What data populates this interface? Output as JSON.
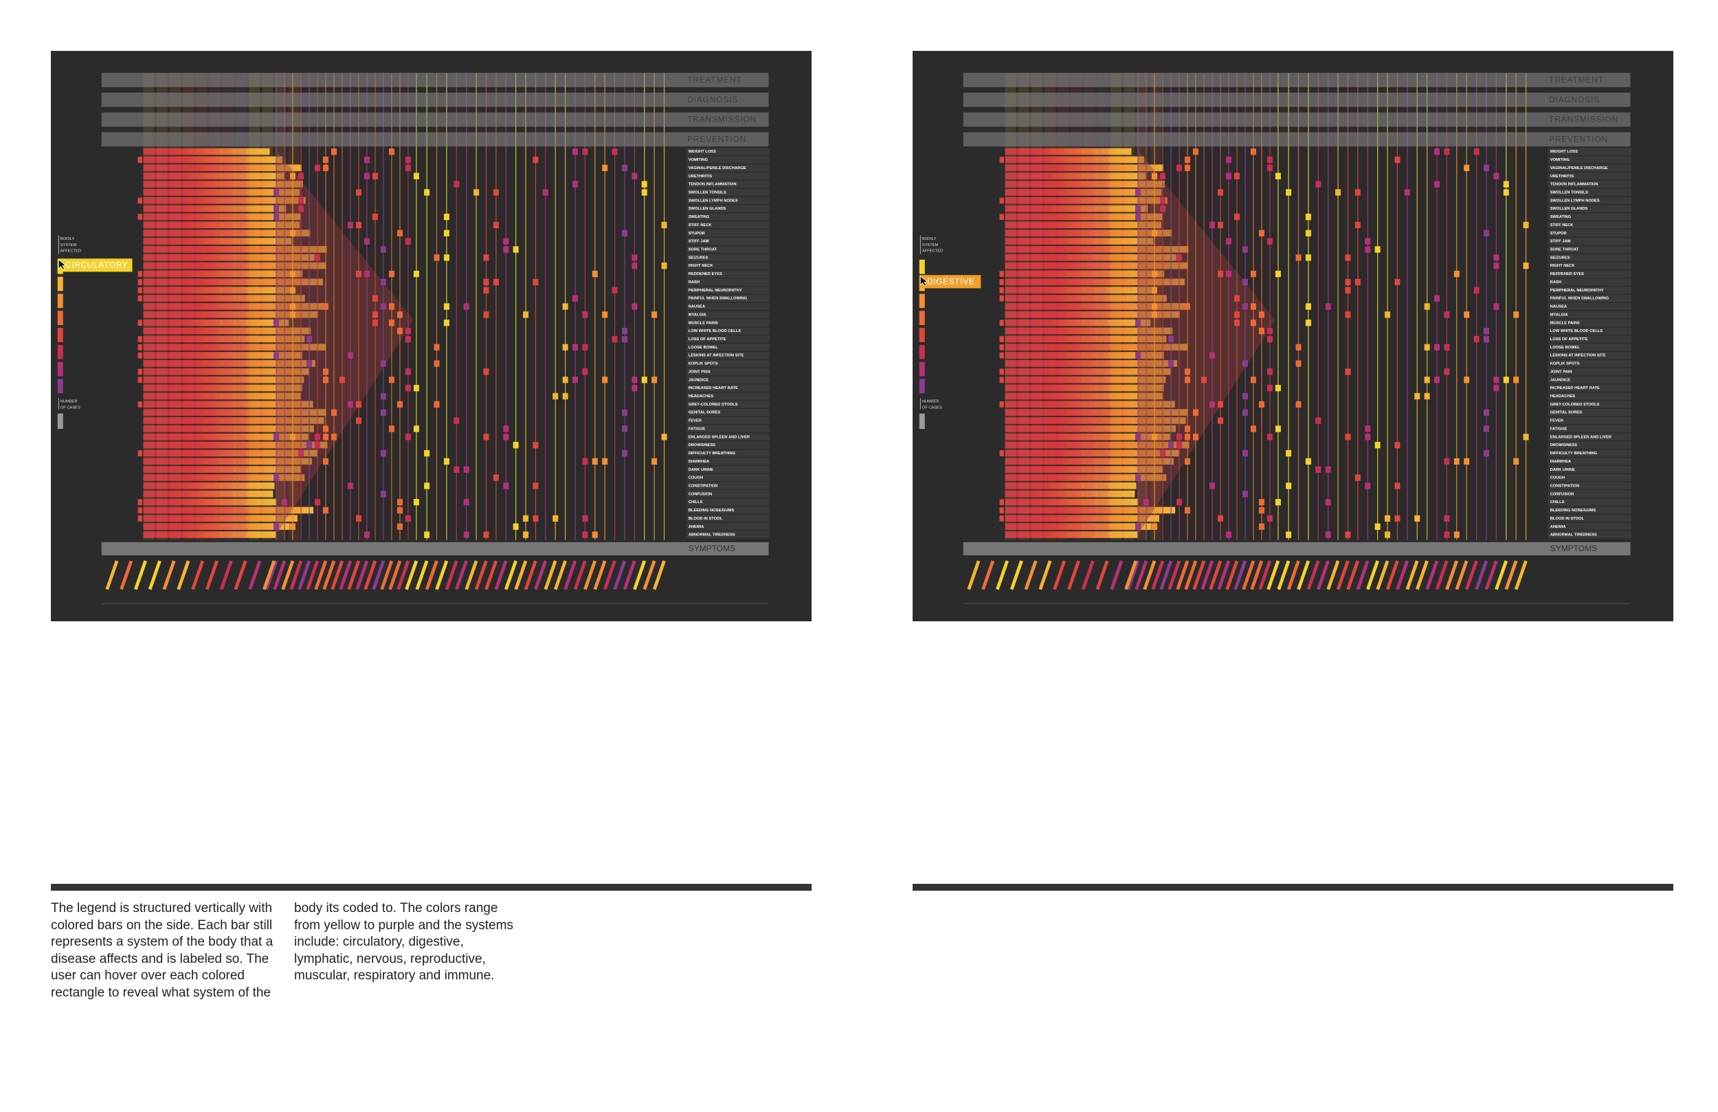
{
  "header_rows": [
    "TREATMENT",
    "DIAGNOSIS",
    "TRANSMISSION",
    "PREVENTION"
  ],
  "symptoms_header": "SYMPTOMS",
  "symptoms": [
    "WEIGHT LOSS",
    "VOMITING",
    "VAGINAL/PENILE DISCHARGE",
    "URETHRITIS",
    "TENDON INFLAMMATION",
    "SWOLLEN TONSILS",
    "SWOLLEN LYMPH NODES",
    "SWOLLEN GLANDS",
    "SWEATING",
    "STIFF NECK",
    "STUPOR",
    "STIFF JAW",
    "SORE THROAT",
    "SEIZURES",
    "RIGHT NECK",
    "REDDENED EYES",
    "RASH",
    "PERIPHERAL NEUROPATHY",
    "PAINFUL WHEN SWALLOWING",
    "NAUSEA",
    "MYALGIA",
    "MUSCLE PAINS",
    "LOW WHITE BLOOD CELLS",
    "LOSS OF APPETITE",
    "LOOSE BOWEL",
    "LESIONS AT INFECTION SITE",
    "KOPLIK SPOTS",
    "JOINT PAIN",
    "JAUNDICE",
    "INCREASED HEART RATE",
    "HEADACHES",
    "GREY-COLORED STOOLS",
    "GENITAL SORES",
    "FEVER",
    "FATIGUE",
    "ENLARGED SPLEEN AND LIVER",
    "DROWSINESS",
    "DIFFICULTY BREATHING",
    "DIARRHEA",
    "DARK URINE",
    "COUGH",
    "CONSTIPATION",
    "CONFUSION",
    "CHILLS",
    "BLEEDING NOSE/GUMS",
    "BLOOD IN STOOL",
    "ANEMIA",
    "ABNORMAL TIREDNESS"
  ],
  "legend_system": [
    "BODILY",
    "SYSTEM",
    "AFFECTED"
  ],
  "legend_cases": [
    "NUMBER",
    "OF CASES"
  ],
  "panels": [
    {
      "hover_label": "CIRCULATORY"
    },
    {
      "hover_label": "DIGESTIVE"
    }
  ],
  "caption": "The legend is structured vertically with colored bars on the side. Each bar still represents a system of the body that a disease affects and is labeled so. The user can hover over each colored rectangle to reveal what system of the body its coded to. The colors range from yellow to purple and the systems include: circulatory, digestive, lymphatic, nervous, reproductive, muscular, respiratory and immune."
}
